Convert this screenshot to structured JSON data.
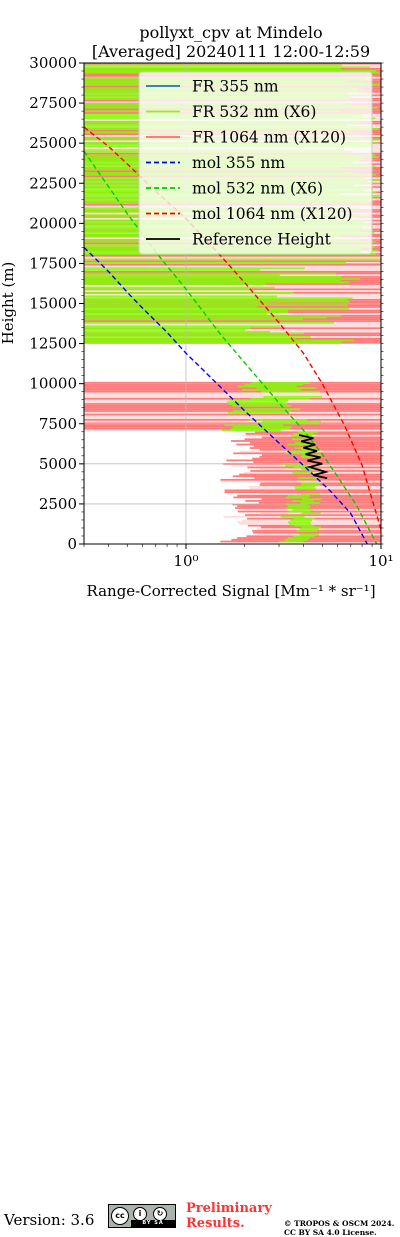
{
  "chart_data": {
    "type": "line",
    "title_lines": [
      "pollyxt_cpv at Mindelo",
      "[Averaged] 20240111 12:00-12:59"
    ],
    "xlabel": "Range-Corrected Signal [Mm⁻¹ * sr⁻¹]",
    "ylabel": "Height (m)",
    "xscale": "log",
    "xlim": [
      0.3,
      10
    ],
    "ylim": [
      0,
      30000
    ],
    "x_tick_labels": [
      "10⁰",
      "10¹"
    ],
    "x_ticks": [
      1,
      10
    ],
    "y_ticks": [
      0,
      2500,
      5000,
      7500,
      10000,
      12500,
      15000,
      17500,
      20000,
      22500,
      25000,
      27500,
      30000
    ],
    "y_tick_labels": [
      "0",
      "2500",
      "5000",
      "7500",
      "10000",
      "12500",
      "15000",
      "17500",
      "20000",
      "22500",
      "25000",
      "27500",
      "30000"
    ],
    "grid": true,
    "legend_position": "top-right",
    "series": [
      {
        "name": "FR 355 nm",
        "color": "#1f77b4",
        "style": "solid"
      },
      {
        "name": "FR 532 nm (X6)",
        "color": "#80ff00",
        "style": "solid"
      },
      {
        "name": "FR 1064 nm (X120)",
        "color": "#ff6b6b",
        "style": "solid"
      },
      {
        "name": "mol 355 nm",
        "color": "#0000ff",
        "style": "dashed",
        "x": [
          0.3,
          0.4,
          0.5,
          0.6,
          0.8,
          1.0,
          1.5,
          2.0,
          3.0,
          4.0,
          5.5,
          7.0,
          8.5
        ],
        "y": [
          18500,
          17000,
          15700,
          14700,
          13200,
          11900,
          9800,
          8300,
          6300,
          4900,
          3300,
          1900,
          0
        ]
      },
      {
        "name": "mol 532 nm (X6)",
        "color": "#00cc00",
        "style": "dashed",
        "x": [
          0.3,
          0.4,
          0.5,
          0.7,
          1.0,
          1.5,
          2.0,
          3.0,
          4.0,
          5.0,
          6.0,
          7.5,
          9.5
        ],
        "y": [
          24500,
          22300,
          20600,
          18200,
          15900,
          13100,
          11300,
          8800,
          7100,
          5600,
          4200,
          2400,
          0
        ]
      },
      {
        "name": "mol 1064 nm (X120)",
        "color": "#ff0000",
        "style": "dashed",
        "x": [
          0.3,
          0.4,
          0.5,
          0.7,
          1.0,
          1.5,
          2.0,
          3.0,
          4.0,
          5.0,
          6.5,
          8.0,
          10.0
        ],
        "y": [
          26000,
          24800,
          23700,
          22000,
          20300,
          18000,
          16300,
          13800,
          11900,
          10000,
          7400,
          4900,
          900
        ]
      },
      {
        "name": "Reference Height",
        "color": "#000000",
        "style": "solid",
        "x": [
          3.8,
          4.5,
          3.9,
          4.6,
          4.0,
          4.7,
          4.1,
          4.9,
          4.2,
          5.0,
          4.3,
          5.2,
          4.5,
          5.3
        ],
        "y": [
          6800,
          6600,
          6400,
          6200,
          6000,
          5800,
          5600,
          5400,
          5200,
          5000,
          4800,
          4500,
          4300,
          4100
        ]
      }
    ]
  },
  "footer": {
    "version": "Version: 3.6",
    "license_badge": {
      "top": "cc",
      "bottom": "BY SA"
    },
    "preliminary": [
      "Preliminary",
      "Results."
    ],
    "copyright": [
      "© TROPOS & OSCM 2024.",
      "CC BY SA 4.0 License."
    ]
  }
}
